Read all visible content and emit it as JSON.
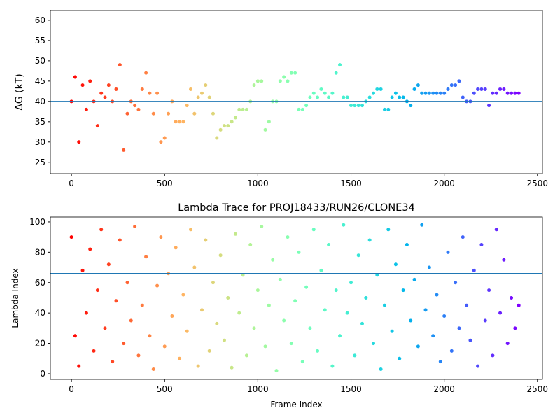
{
  "chart_data": [
    {
      "type": "scatter",
      "ylabel": "ΔG (kT)",
      "colormap": "rainbow_r",
      "hline": 40,
      "hline_color": "#1f77b4",
      "xlim": [
        -113,
        2527
      ],
      "ylim": [
        22.2,
        62.4
      ],
      "xticks": [
        0,
        500,
        1000,
        1500,
        2000,
        2500
      ],
      "yticks": [
        25,
        30,
        35,
        40,
        45,
        50,
        55,
        60
      ],
      "x": [
        0,
        20,
        40,
        60,
        80,
        100,
        120,
        140,
        160,
        180,
        200,
        220,
        240,
        260,
        280,
        300,
        320,
        340,
        360,
        380,
        400,
        420,
        440,
        460,
        480,
        500,
        520,
        540,
        560,
        580,
        600,
        620,
        640,
        660,
        680,
        700,
        720,
        740,
        760,
        780,
        800,
        820,
        840,
        860,
        880,
        900,
        920,
        940,
        960,
        980,
        1000,
        1020,
        1040,
        1060,
        1080,
        1100,
        1120,
        1140,
        1160,
        1180,
        1200,
        1220,
        1240,
        1260,
        1280,
        1300,
        1320,
        1340,
        1360,
        1380,
        1400,
        1420,
        1440,
        1460,
        1480,
        1500,
        1520,
        1540,
        1560,
        1580,
        1600,
        1620,
        1640,
        1660,
        1680,
        1700,
        1720,
        1740,
        1760,
        1780,
        1800,
        1820,
        1840,
        1860,
        1880,
        1900,
        1920,
        1940,
        1960,
        1980,
        2000,
        2020,
        2040,
        2060,
        2080,
        2100,
        2120,
        2140,
        2160,
        2180,
        2200,
        2220,
        2240,
        2260,
        2280,
        2300,
        2320,
        2340,
        2360,
        2380,
        2400
      ],
      "values": [
        40,
        46,
        30,
        44,
        38,
        45,
        40,
        34,
        42,
        41,
        44,
        40,
        43,
        49,
        28,
        37,
        40,
        39,
        38,
        43,
        47,
        42,
        37,
        42,
        30,
        31,
        37,
        40,
        35,
        35,
        35,
        39,
        43,
        37,
        41,
        42,
        44,
        41,
        37,
        31,
        33,
        34,
        34,
        35,
        36,
        38,
        38,
        38,
        40,
        44,
        45,
        45,
        33,
        35,
        40,
        40,
        45,
        46,
        45,
        47,
        47,
        38,
        38,
        39,
        41,
        42,
        41,
        43,
        42,
        41,
        42,
        47,
        49,
        41,
        41,
        39,
        39,
        39,
        39,
        40,
        41,
        42,
        43,
        43,
        38,
        38,
        41,
        42,
        41,
        41,
        40,
        39,
        43,
        44,
        42,
        42,
        42,
        42,
        42,
        42,
        42,
        43,
        44,
        44,
        45,
        41,
        40,
        40,
        42,
        43,
        43,
        43,
        39,
        42,
        42,
        43,
        43,
        42,
        42,
        42,
        42
      ]
    },
    {
      "type": "scatter",
      "title": "Lambda Trace for PROJ18433/RUN26/CLONE34",
      "xlabel": "Frame Index",
      "ylabel": "Lambda Index",
      "colormap": "rainbow_r",
      "hline": 66,
      "hline_color": "#1f77b4",
      "xlim": [
        -113,
        2527
      ],
      "ylim": [
        -3.7,
        103.2
      ],
      "xticks": [
        0,
        500,
        1000,
        1500,
        2000,
        2500
      ],
      "yticks": [
        0,
        20,
        40,
        60,
        80,
        100
      ],
      "x": [
        0,
        20,
        40,
        60,
        80,
        100,
        120,
        140,
        160,
        180,
        200,
        220,
        240,
        260,
        280,
        300,
        320,
        340,
        360,
        380,
        400,
        420,
        440,
        460,
        480,
        500,
        520,
        540,
        560,
        580,
        600,
        620,
        640,
        660,
        680,
        700,
        720,
        740,
        760,
        780,
        800,
        820,
        840,
        860,
        880,
        900,
        920,
        940,
        960,
        980,
        1000,
        1020,
        1040,
        1060,
        1080,
        1100,
        1120,
        1140,
        1160,
        1180,
        1200,
        1220,
        1240,
        1260,
        1280,
        1300,
        1320,
        1340,
        1360,
        1380,
        1400,
        1420,
        1440,
        1460,
        1480,
        1500,
        1520,
        1540,
        1560,
        1580,
        1600,
        1620,
        1640,
        1660,
        1680,
        1700,
        1720,
        1740,
        1760,
        1780,
        1800,
        1820,
        1840,
        1860,
        1880,
        1900,
        1920,
        1940,
        1960,
        1980,
        2000,
        2020,
        2040,
        2060,
        2080,
        2100,
        2120,
        2140,
        2160,
        2180,
        2200,
        2220,
        2240,
        2260,
        2280,
        2300,
        2320,
        2340,
        2360,
        2380,
        2400
      ],
      "values": [
        90,
        25,
        5,
        68,
        40,
        82,
        15,
        55,
        95,
        30,
        72,
        8,
        48,
        88,
        20,
        60,
        35,
        97,
        12,
        45,
        77,
        25,
        3,
        58,
        90,
        18,
        66,
        38,
        83,
        10,
        52,
        28,
        95,
        70,
        5,
        42,
        88,
        15,
        60,
        33,
        78,
        22,
        50,
        4,
        92,
        40,
        65,
        12,
        85,
        30,
        55,
        97,
        18,
        45,
        75,
        2,
        62,
        35,
        90,
        20,
        48,
        80,
        8,
        57,
        30,
        95,
        15,
        68,
        42,
        85,
        5,
        55,
        25,
        98,
        40,
        60,
        12,
        78,
        33,
        50,
        88,
        20,
        65,
        3,
        45,
        95,
        28,
        72,
        10,
        55,
        85,
        35,
        62,
        18,
        98,
        42,
        70,
        25,
        52,
        8,
        38,
        80,
        15,
        60,
        30,
        90,
        45,
        22,
        68,
        5,
        85,
        35,
        55,
        12,
        95,
        40,
        75,
        20,
        50,
        30,
        45
      ]
    }
  ]
}
